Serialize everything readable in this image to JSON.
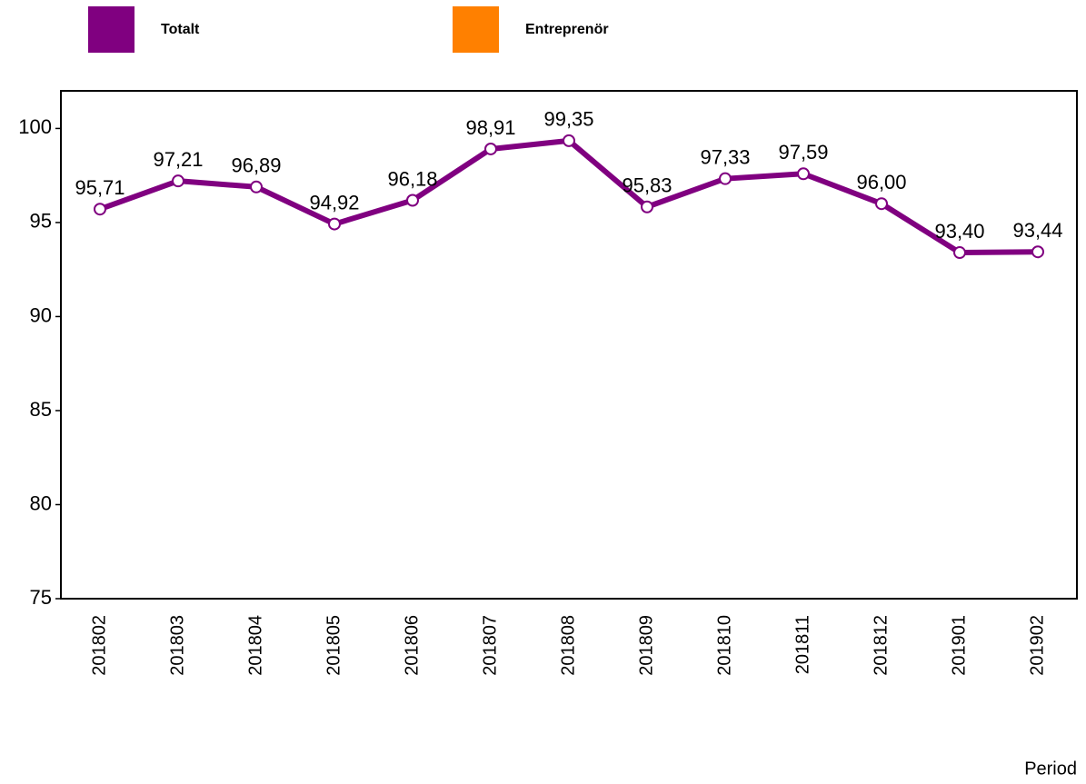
{
  "chart_data": {
    "type": "line",
    "categories": [
      "201802",
      "201803",
      "201804",
      "201805",
      "201806",
      "201807",
      "201808",
      "201809",
      "201810",
      "201811",
      "201812",
      "201901",
      "201902"
    ],
    "series": [
      {
        "name": "Totalt",
        "color": "#800080",
        "values": [
          95.71,
          97.21,
          96.89,
          94.92,
          96.18,
          98.91,
          99.35,
          95.83,
          97.33,
          97.59,
          96.0,
          93.4,
          93.44
        ],
        "value_labels": [
          "95,71",
          "97,21",
          "96,89",
          "94,92",
          "96,18",
          "98,91",
          "99,35",
          "95,83",
          "97,33",
          "97,59",
          "96,00",
          "93,40",
          "93,44"
        ]
      },
      {
        "name": "Entreprenör",
        "color": "#ff8000",
        "values": [
          null,
          null,
          null,
          null,
          null,
          null,
          null,
          null,
          null,
          null,
          null,
          null,
          null
        ]
      }
    ],
    "ylim": [
      75,
      102
    ],
    "yticks": [
      75,
      80,
      85,
      90,
      95,
      100
    ],
    "x_label": "Period"
  }
}
